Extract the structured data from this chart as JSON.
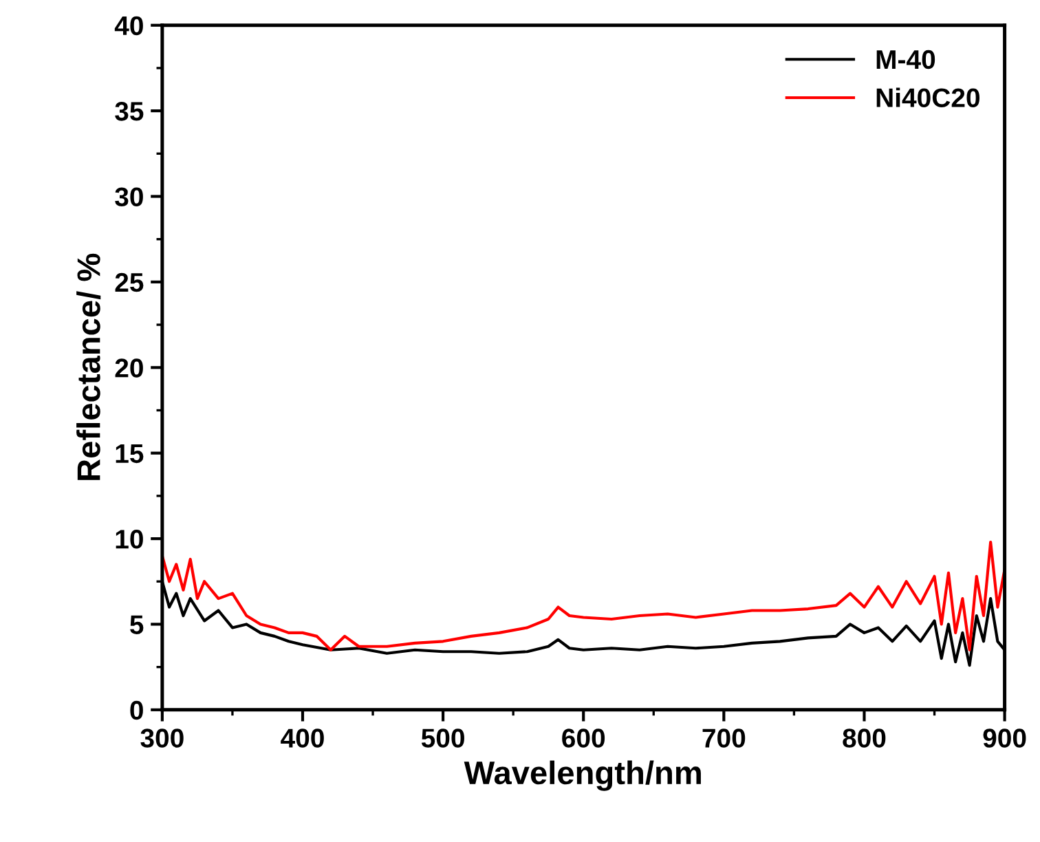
{
  "chart_data": {
    "type": "line",
    "xlabel": "Wavelength/nm",
    "ylabel": "Reflectance/ %",
    "xlim": [
      300,
      900
    ],
    "xticks": [
      300,
      400,
      500,
      600,
      700,
      800,
      900
    ],
    "ylim": [
      0,
      40
    ],
    "yticks": [
      0,
      5,
      10,
      15,
      20,
      25,
      30,
      35,
      40
    ],
    "grid": false,
    "legend": "top right",
    "marker": "none",
    "line_style": "solid",
    "series": [
      {
        "name": "M-40",
        "color": "#000000",
        "x": [
          300,
          305,
          310,
          315,
          320,
          330,
          340,
          350,
          360,
          370,
          380,
          390,
          400,
          420,
          440,
          460,
          480,
          500,
          520,
          540,
          560,
          575,
          582,
          590,
          600,
          620,
          640,
          660,
          680,
          700,
          720,
          740,
          760,
          780,
          790,
          800,
          810,
          820,
          830,
          840,
          850,
          855,
          860,
          865,
          870,
          875,
          880,
          885,
          890,
          895,
          900
        ],
        "values": [
          7.5,
          6.0,
          6.8,
          5.5,
          6.5,
          5.2,
          5.8,
          4.8,
          5.0,
          4.5,
          4.3,
          4.0,
          3.8,
          3.5,
          3.6,
          3.3,
          3.5,
          3.4,
          3.4,
          3.3,
          3.4,
          3.7,
          4.1,
          3.6,
          3.5,
          3.6,
          3.5,
          3.7,
          3.6,
          3.7,
          3.9,
          4.0,
          4.2,
          4.3,
          5.0,
          4.5,
          4.8,
          4.0,
          4.9,
          4.0,
          5.2,
          3.0,
          5.0,
          2.8,
          4.5,
          2.6,
          5.5,
          4.0,
          6.5,
          4.0,
          3.5
        ]
      },
      {
        "name": "Ni40C20",
        "color": "#ff0000",
        "x": [
          300,
          305,
          310,
          315,
          320,
          325,
          330,
          340,
          350,
          360,
          370,
          380,
          390,
          400,
          410,
          420,
          430,
          440,
          460,
          480,
          500,
          520,
          540,
          560,
          575,
          582,
          590,
          600,
          620,
          640,
          660,
          680,
          700,
          720,
          740,
          760,
          780,
          790,
          800,
          810,
          820,
          830,
          840,
          850,
          855,
          860,
          865,
          870,
          875,
          880,
          885,
          890,
          895,
          900
        ],
        "values": [
          9.0,
          7.5,
          8.5,
          7.0,
          8.8,
          6.5,
          7.5,
          6.5,
          6.8,
          5.5,
          5.0,
          4.8,
          4.5,
          4.5,
          4.3,
          3.5,
          4.3,
          3.7,
          3.7,
          3.9,
          4.0,
          4.3,
          4.5,
          4.8,
          5.3,
          6.0,
          5.5,
          5.4,
          5.3,
          5.5,
          5.6,
          5.4,
          5.6,
          5.8,
          5.8,
          5.9,
          6.1,
          6.8,
          6.0,
          7.2,
          6.0,
          7.5,
          6.2,
          7.8,
          5.0,
          8.0,
          4.5,
          6.5,
          3.5,
          7.8,
          5.5,
          9.8,
          6.0,
          8.2
        ]
      }
    ]
  }
}
